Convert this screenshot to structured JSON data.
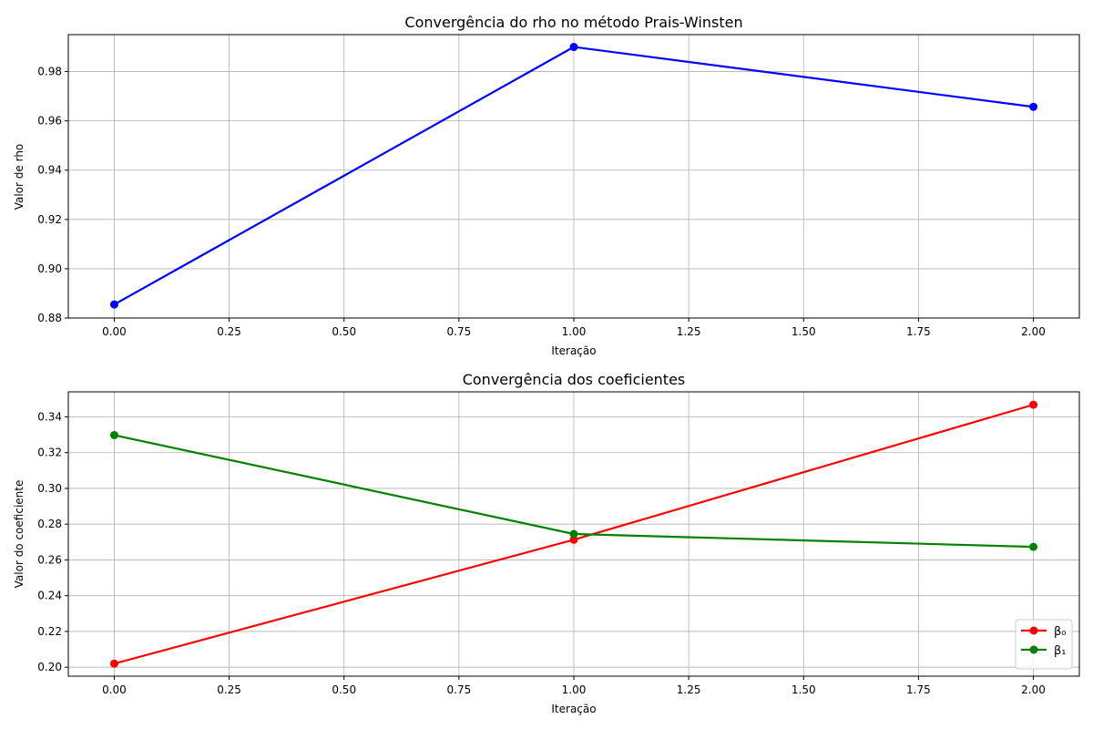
{
  "chart_data": [
    {
      "type": "line",
      "title": "Convergência do rho no método Prais-Winsten",
      "xlabel": "Iteração",
      "ylabel": "Valor de rho",
      "x": [
        0,
        1,
        2
      ],
      "xlim": [
        -0.1,
        2.1
      ],
      "ylim": [
        0.88,
        0.995
      ],
      "xticks": [
        0.0,
        0.25,
        0.5,
        0.75,
        1.0,
        1.25,
        1.5,
        1.75,
        2.0
      ],
      "xtick_labels": [
        "0.00",
        "0.25",
        "0.50",
        "0.75",
        "1.00",
        "1.25",
        "1.50",
        "1.75",
        "2.00"
      ],
      "yticks": [
        0.88,
        0.9,
        0.92,
        0.94,
        0.96,
        0.98
      ],
      "ytick_labels": [
        "0.88",
        "0.90",
        "0.92",
        "0.94",
        "0.96",
        "0.98"
      ],
      "grid": true,
      "legend": null,
      "series": [
        {
          "values": [
            0.8855,
            0.99,
            0.9657
          ],
          "color": "#0000ff"
        }
      ]
    },
    {
      "type": "line",
      "title": "Convergência dos coeficientes",
      "xlabel": "Iteração",
      "ylabel": "Valor do coeficiente",
      "x": [
        0,
        1,
        2
      ],
      "xlim": [
        -0.1,
        2.1
      ],
      "ylim": [
        0.195,
        0.354
      ],
      "xticks": [
        0.0,
        0.25,
        0.5,
        0.75,
        1.0,
        1.25,
        1.5,
        1.75,
        2.0
      ],
      "xtick_labels": [
        "0.00",
        "0.25",
        "0.50",
        "0.75",
        "1.00",
        "1.25",
        "1.50",
        "1.75",
        "2.00"
      ],
      "yticks": [
        0.2,
        0.22,
        0.24,
        0.26,
        0.28,
        0.3,
        0.32,
        0.34
      ],
      "ytick_labels": [
        "0.20",
        "0.22",
        "0.24",
        "0.26",
        "0.28",
        "0.30",
        "0.32",
        "0.34"
      ],
      "grid": true,
      "legend": "lower-right",
      "series": [
        {
          "name": "β₀",
          "values": [
            0.202,
            0.2713,
            0.3468
          ],
          "color": "#ff0000"
        },
        {
          "name": "β₁",
          "values": [
            0.3298,
            0.2745,
            0.2673
          ],
          "color": "#008000"
        }
      ]
    }
  ]
}
